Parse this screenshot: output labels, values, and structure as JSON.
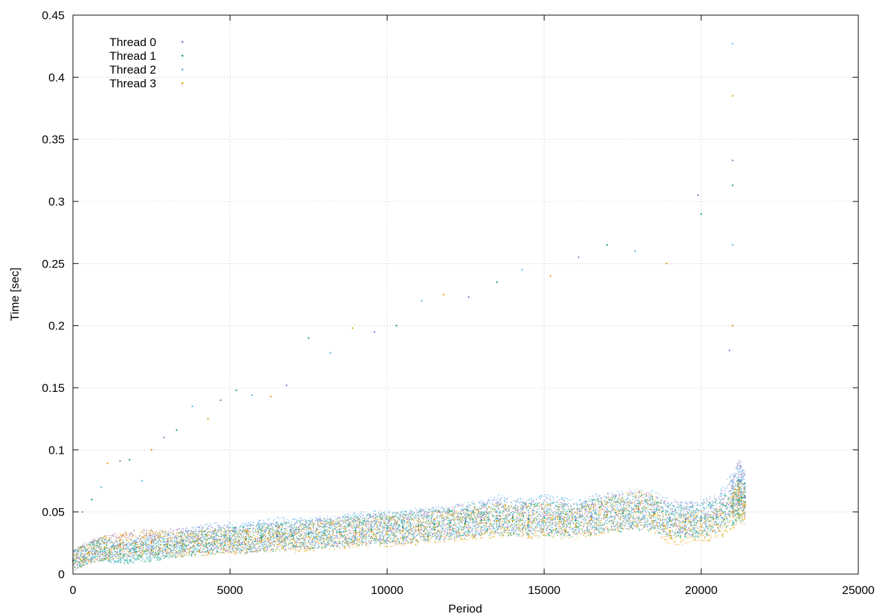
{
  "chart_data": {
    "type": "scatter",
    "xlabel": "Period",
    "ylabel": "Time [sec]",
    "xlim": [
      0,
      25000
    ],
    "ylim": [
      0,
      0.45
    ],
    "xticks": [
      0,
      5000,
      10000,
      15000,
      20000,
      25000
    ],
    "xtick_labels": [
      "0",
      "5000",
      "10000",
      "15000",
      "20000",
      "25000"
    ],
    "yticks": [
      0,
      0.05,
      0.1,
      0.15,
      0.2,
      0.25,
      0.3,
      0.35,
      0.4,
      0.45
    ],
    "ytick_labels": [
      "0",
      "0.05",
      "0.1",
      "0.15",
      "0.2",
      "0.25",
      "0.3",
      "0.35",
      "0.4",
      "0.45"
    ],
    "grid": true,
    "legend_position": "top-left",
    "series": [
      {
        "name": "Thread 0",
        "color": "#9467bd",
        "points": [
          [
            0,
            0.011
          ],
          [
            500,
            0.018
          ],
          [
            1000,
            0.021
          ],
          [
            1500,
            0.024
          ],
          [
            2000,
            0.025
          ],
          [
            2500,
            0.026
          ],
          [
            3000,
            0.026
          ],
          [
            3500,
            0.027
          ],
          [
            4000,
            0.028
          ],
          [
            4500,
            0.028
          ],
          [
            5000,
            0.029
          ],
          [
            5500,
            0.028
          ],
          [
            6000,
            0.03
          ],
          [
            6500,
            0.031
          ],
          [
            7000,
            0.031
          ],
          [
            7500,
            0.032
          ],
          [
            8000,
            0.033
          ],
          [
            8500,
            0.034
          ],
          [
            9000,
            0.035
          ],
          [
            9500,
            0.036
          ],
          [
            10000,
            0.037
          ],
          [
            10500,
            0.037
          ],
          [
            11000,
            0.039
          ],
          [
            11500,
            0.04
          ],
          [
            12000,
            0.041
          ],
          [
            12500,
            0.043
          ],
          [
            13000,
            0.044
          ],
          [
            13500,
            0.047
          ],
          [
            14000,
            0.046
          ],
          [
            14500,
            0.045
          ],
          [
            15000,
            0.047
          ],
          [
            15500,
            0.046
          ],
          [
            16000,
            0.044
          ],
          [
            16500,
            0.047
          ],
          [
            17000,
            0.05
          ],
          [
            17500,
            0.05
          ],
          [
            18000,
            0.052
          ],
          [
            18500,
            0.05
          ],
          [
            19000,
            0.045
          ],
          [
            19500,
            0.044
          ],
          [
            20000,
            0.045
          ],
          [
            20500,
            0.048
          ],
          [
            21000,
            0.06
          ],
          [
            21200,
            0.075
          ],
          [
            21400,
            0.062
          ]
        ]
      },
      {
        "name": "Thread 1",
        "color": "#009e73",
        "points": [
          [
            0,
            0.011
          ],
          [
            500,
            0.017
          ],
          [
            1000,
            0.02
          ],
          [
            1500,
            0.016
          ],
          [
            2000,
            0.018
          ],
          [
            2500,
            0.019
          ],
          [
            3000,
            0.022
          ],
          [
            3500,
            0.024
          ],
          [
            4000,
            0.025
          ],
          [
            4500,
            0.026
          ],
          [
            5000,
            0.027
          ],
          [
            5500,
            0.028
          ],
          [
            6000,
            0.029
          ],
          [
            6500,
            0.03
          ],
          [
            7000,
            0.031
          ],
          [
            7500,
            0.032
          ],
          [
            8000,
            0.033
          ],
          [
            8500,
            0.034
          ],
          [
            9000,
            0.035
          ],
          [
            9500,
            0.036
          ],
          [
            10000,
            0.037
          ],
          [
            10500,
            0.038
          ],
          [
            11000,
            0.039
          ],
          [
            11500,
            0.04
          ],
          [
            12000,
            0.041
          ],
          [
            12500,
            0.042
          ],
          [
            13000,
            0.043
          ],
          [
            13500,
            0.045
          ],
          [
            14000,
            0.045
          ],
          [
            14500,
            0.044
          ],
          [
            15000,
            0.045
          ],
          [
            15500,
            0.044
          ],
          [
            16000,
            0.043
          ],
          [
            16500,
            0.046
          ],
          [
            17000,
            0.048
          ],
          [
            17500,
            0.049
          ],
          [
            18000,
            0.05
          ],
          [
            18500,
            0.049
          ],
          [
            19000,
            0.043
          ],
          [
            19500,
            0.042
          ],
          [
            20000,
            0.043
          ],
          [
            20500,
            0.046
          ],
          [
            21000,
            0.055
          ],
          [
            21200,
            0.06
          ],
          [
            21400,
            0.058
          ]
        ]
      },
      {
        "name": "Thread 2",
        "color": "#56b4e9",
        "points": [
          [
            0,
            0.011
          ],
          [
            500,
            0.017
          ],
          [
            1000,
            0.02
          ],
          [
            1500,
            0.018
          ],
          [
            2000,
            0.02
          ],
          [
            2500,
            0.022
          ],
          [
            3000,
            0.024
          ],
          [
            3500,
            0.026
          ],
          [
            4000,
            0.028
          ],
          [
            4500,
            0.03
          ],
          [
            5000,
            0.031
          ],
          [
            5500,
            0.03
          ],
          [
            6000,
            0.032
          ],
          [
            6500,
            0.034
          ],
          [
            7000,
            0.033
          ],
          [
            7500,
            0.034
          ],
          [
            8000,
            0.035
          ],
          [
            8500,
            0.036
          ],
          [
            9000,
            0.037
          ],
          [
            9500,
            0.038
          ],
          [
            10000,
            0.039
          ],
          [
            10500,
            0.039
          ],
          [
            11000,
            0.04
          ],
          [
            11500,
            0.041
          ],
          [
            12000,
            0.042
          ],
          [
            12500,
            0.044
          ],
          [
            13000,
            0.046
          ],
          [
            13500,
            0.05
          ],
          [
            14000,
            0.048
          ],
          [
            14500,
            0.047
          ],
          [
            15000,
            0.05
          ],
          [
            15500,
            0.048
          ],
          [
            16000,
            0.046
          ],
          [
            16500,
            0.049
          ],
          [
            17000,
            0.052
          ],
          [
            17500,
            0.052
          ],
          [
            18000,
            0.054
          ],
          [
            18500,
            0.052
          ],
          [
            19000,
            0.046
          ],
          [
            19500,
            0.045
          ],
          [
            20000,
            0.046
          ],
          [
            20500,
            0.05
          ],
          [
            21000,
            0.065
          ],
          [
            21200,
            0.07
          ],
          [
            21400,
            0.066
          ]
        ]
      },
      {
        "name": "Thread 3",
        "color": "#e69f00",
        "points": [
          [
            0,
            0.01
          ],
          [
            500,
            0.017
          ],
          [
            1000,
            0.021
          ],
          [
            1500,
            0.023
          ],
          [
            2000,
            0.025
          ],
          [
            2500,
            0.025
          ],
          [
            3000,
            0.024
          ],
          [
            3500,
            0.024
          ],
          [
            4000,
            0.025
          ],
          [
            4500,
            0.026
          ],
          [
            5000,
            0.026
          ],
          [
            5500,
            0.027
          ],
          [
            6000,
            0.027
          ],
          [
            6500,
            0.028
          ],
          [
            7000,
            0.028
          ],
          [
            7500,
            0.03
          ],
          [
            8000,
            0.031
          ],
          [
            8500,
            0.032
          ],
          [
            9000,
            0.033
          ],
          [
            9500,
            0.034
          ],
          [
            10000,
            0.034
          ],
          [
            10500,
            0.035
          ],
          [
            11000,
            0.036
          ],
          [
            11500,
            0.038
          ],
          [
            12000,
            0.039
          ],
          [
            12500,
            0.04
          ],
          [
            13000,
            0.041
          ],
          [
            13500,
            0.043
          ],
          [
            14000,
            0.043
          ],
          [
            14500,
            0.042
          ],
          [
            15000,
            0.043
          ],
          [
            15500,
            0.042
          ],
          [
            16000,
            0.04
          ],
          [
            16500,
            0.044
          ],
          [
            17000,
            0.047
          ],
          [
            17500,
            0.05
          ],
          [
            18000,
            0.053
          ],
          [
            18500,
            0.048
          ],
          [
            19000,
            0.035
          ],
          [
            19500,
            0.036
          ],
          [
            20000,
            0.038
          ],
          [
            20500,
            0.04
          ],
          [
            21000,
            0.05
          ],
          [
            21200,
            0.058
          ],
          [
            21400,
            0.055
          ]
        ]
      }
    ],
    "outliers": [
      [
        300,
        0.05
      ],
      [
        600,
        0.06
      ],
      [
        900,
        0.07
      ],
      [
        1100,
        0.089
      ],
      [
        1500,
        0.091
      ],
      [
        1800,
        0.092
      ],
      [
        2200,
        0.075
      ],
      [
        2500,
        0.1
      ],
      [
        2900,
        0.11
      ],
      [
        3300,
        0.116
      ],
      [
        3800,
        0.135
      ],
      [
        4300,
        0.125
      ],
      [
        4700,
        0.14
      ],
      [
        5200,
        0.148
      ],
      [
        5700,
        0.144
      ],
      [
        6300,
        0.143
      ],
      [
        6800,
        0.152
      ],
      [
        7500,
        0.19
      ],
      [
        8200,
        0.178
      ],
      [
        8900,
        0.198
      ],
      [
        9600,
        0.195
      ],
      [
        10300,
        0.2
      ],
      [
        11100,
        0.22
      ],
      [
        11800,
        0.225
      ],
      [
        12600,
        0.223
      ],
      [
        13500,
        0.235
      ],
      [
        14300,
        0.245
      ],
      [
        15200,
        0.24
      ],
      [
        16100,
        0.255
      ],
      [
        17000,
        0.265
      ],
      [
        17900,
        0.26
      ],
      [
        18900,
        0.25
      ],
      [
        19900,
        0.305
      ],
      [
        20000,
        0.29
      ],
      [
        21000,
        0.427
      ],
      [
        21000,
        0.385
      ],
      [
        21000,
        0.333
      ],
      [
        21000,
        0.313
      ],
      [
        21000,
        0.265
      ],
      [
        21000,
        0.2
      ],
      [
        20900,
        0.18
      ]
    ]
  }
}
